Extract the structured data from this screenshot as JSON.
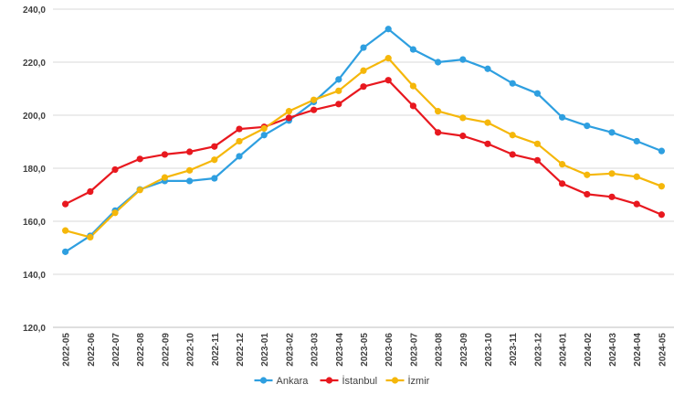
{
  "chart_data": {
    "type": "line",
    "title": "",
    "xlabel": "",
    "ylabel": "",
    "ylim": [
      120,
      240
    ],
    "yticks": [
      "120,0",
      "140,0",
      "160,0",
      "180,0",
      "200,0",
      "220,0",
      "240,0"
    ],
    "grid": "horizontal",
    "legend_position": "bottom",
    "categories": [
      "2022-05",
      "2022-06",
      "2022-07",
      "2022-08",
      "2022-09",
      "2022-10",
      "2022-11",
      "2022-12",
      "2023-01",
      "2023-02",
      "2023-03",
      "2023-04",
      "2023-05",
      "2023-06",
      "2023-07",
      "2023-08",
      "2023-09",
      "2023-10",
      "2023-11",
      "2023-12",
      "2024-01",
      "2024-02",
      "2024-03",
      "2024-04",
      "2024-05"
    ],
    "series": [
      {
        "name": "Ankara",
        "color": "#2e9fe0",
        "values": [
          148.5,
          154.5,
          164.0,
          172.0,
          175.2,
          175.2,
          176.2,
          184.5,
          192.5,
          198.0,
          205.0,
          213.5,
          225.5,
          232.5,
          224.8,
          220.0,
          221.0,
          217.5,
          212.0,
          208.2,
          199.2,
          196.0,
          193.5,
          190.2,
          186.5
        ]
      },
      {
        "name": "İstanbul",
        "color": "#e8181f",
        "values": [
          166.5,
          171.2,
          179.5,
          183.5,
          185.2,
          186.2,
          188.2,
          194.8,
          195.6,
          199.0,
          202.0,
          204.2,
          210.8,
          213.2,
          203.5,
          193.5,
          192.2,
          189.2,
          185.2,
          183.0,
          174.2,
          170.2,
          169.2,
          166.5,
          162.5
        ]
      },
      {
        "name": "İzmir",
        "color": "#f5b70a",
        "values": [
          156.5,
          154.0,
          163.2,
          171.8,
          176.5,
          179.2,
          183.2,
          190.2,
          195.0,
          201.5,
          205.8,
          209.2,
          216.8,
          221.5,
          211.0,
          201.5,
          199.0,
          197.2,
          192.5,
          189.2,
          181.5,
          177.5,
          178.0,
          176.8,
          173.2
        ]
      }
    ]
  }
}
